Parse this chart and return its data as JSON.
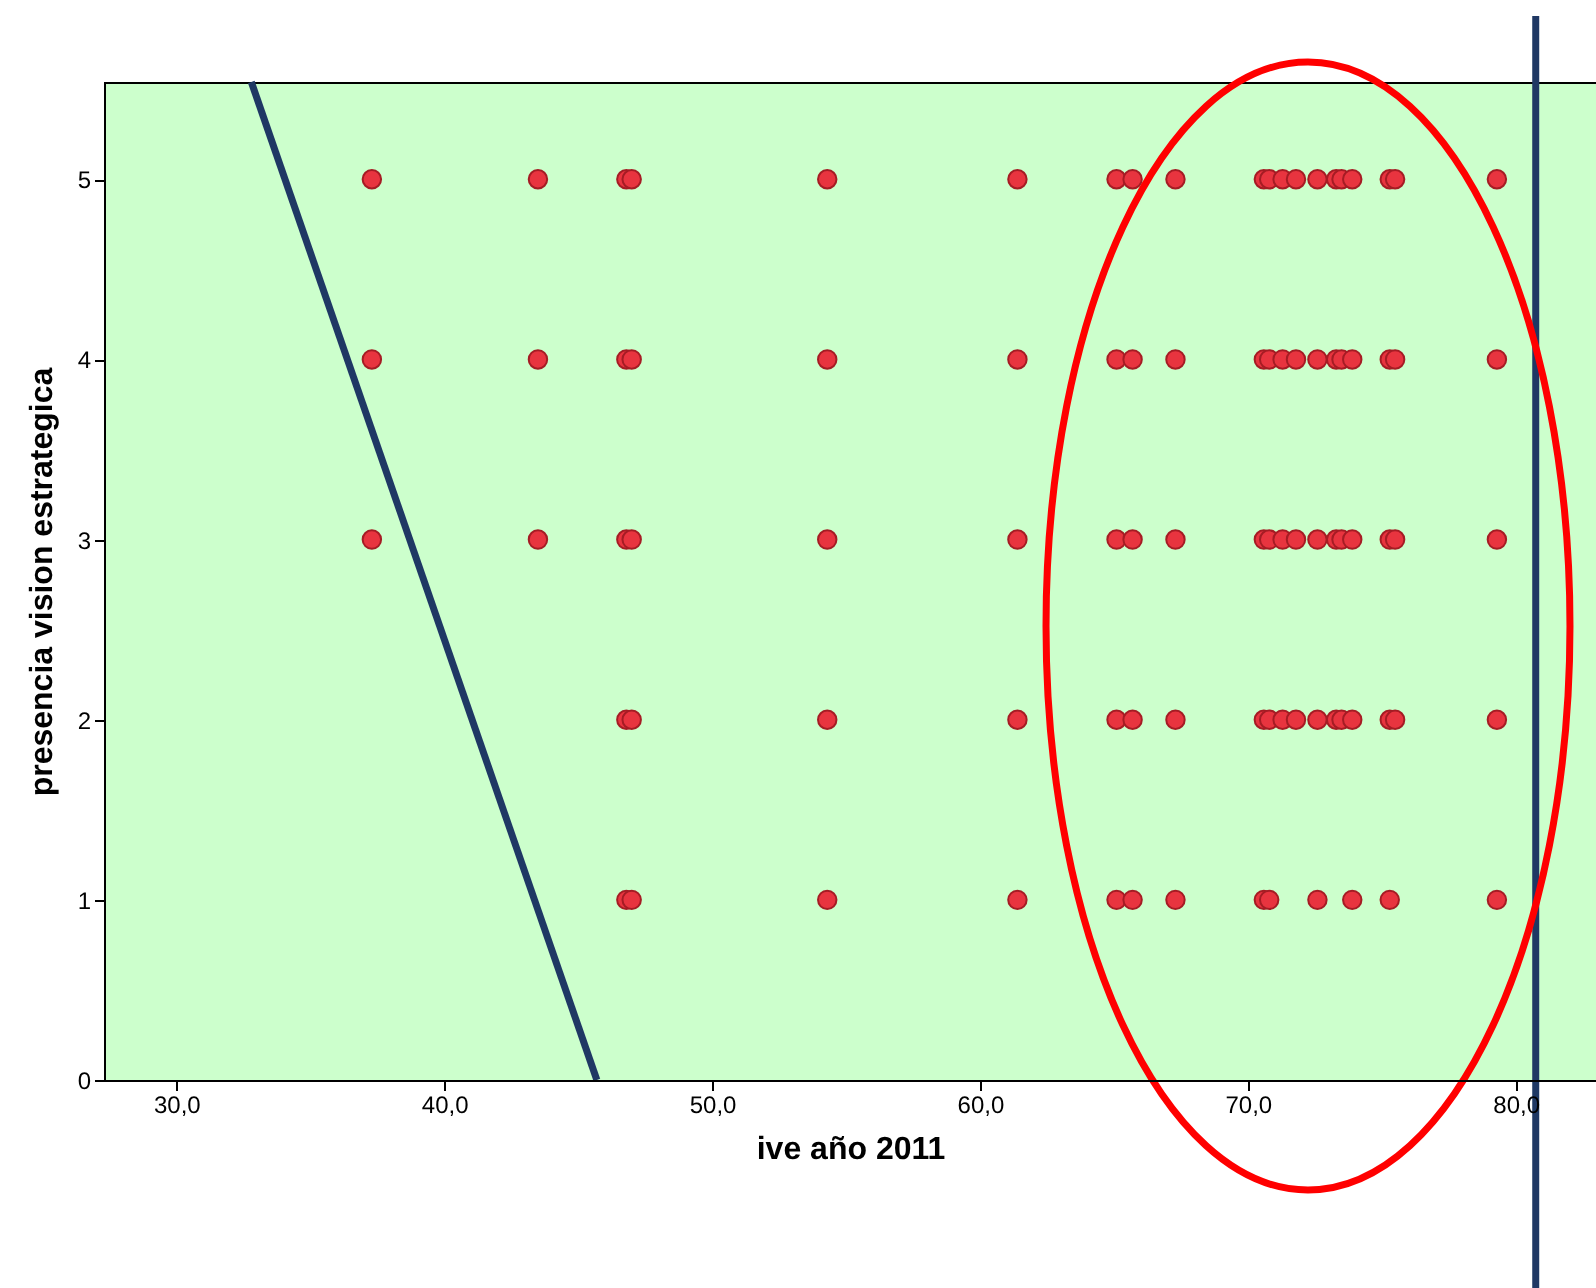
{
  "chart_data": {
    "type": "scatter",
    "xlabel": "ive año 2011",
    "ylabel": "presencia vision estrategica",
    "xlim": [
      27.3,
      83.0
    ],
    "ylim": [
      0,
      5.54
    ],
    "xticks": [
      {
        "value": 30,
        "label": "30,0"
      },
      {
        "value": 40,
        "label": "40,0"
      },
      {
        "value": 50,
        "label": "50,0"
      },
      {
        "value": 60,
        "label": "60,0"
      },
      {
        "value": 70,
        "label": "70,0"
      },
      {
        "value": 80,
        "label": "80,0"
      }
    ],
    "yticks": [
      0,
      1,
      2,
      3,
      4,
      5
    ],
    "grid": false,
    "marker": "circle",
    "series": [
      {
        "color": "#e8343f",
        "x": [
          37.3,
          43.5,
          46.8,
          47.0,
          54.3,
          61.4,
          65.1,
          65.7,
          67.3,
          70.6,
          70.8,
          71.3,
          71.8,
          72.6,
          73.3,
          73.5,
          73.9,
          75.3,
          75.5,
          79.3,
          37.3,
          43.5,
          46.8,
          47.0,
          54.3,
          61.4,
          65.1,
          65.7,
          67.3,
          70.6,
          70.8,
          71.3,
          71.8,
          72.6,
          73.3,
          73.5,
          73.9,
          75.3,
          75.5,
          79.3,
          37.3,
          43.5,
          46.8,
          47.0,
          54.3,
          61.4,
          65.1,
          65.7,
          67.3,
          70.6,
          70.8,
          71.3,
          71.8,
          72.6,
          73.3,
          73.5,
          73.9,
          75.3,
          75.5,
          79.3,
          46.8,
          47.0,
          54.3,
          61.4,
          65.1,
          65.7,
          67.3,
          70.6,
          70.8,
          71.3,
          71.8,
          72.6,
          73.3,
          73.5,
          73.9,
          75.3,
          75.5,
          79.3,
          46.8,
          47.0,
          54.3,
          61.4,
          65.1,
          65.7,
          67.3,
          70.6,
          70.8,
          72.6,
          73.9,
          75.3,
          79.3
        ],
        "values": [
          5,
          5,
          5,
          5,
          5,
          5,
          5,
          5,
          5,
          5,
          5,
          5,
          5,
          5,
          5,
          5,
          5,
          5,
          5,
          5,
          4,
          4,
          4,
          4,
          4,
          4,
          4,
          4,
          4,
          4,
          4,
          4,
          4,
          4,
          4,
          4,
          4,
          4,
          4,
          4,
          3,
          3,
          3,
          3,
          3,
          3,
          3,
          3,
          3,
          3,
          3,
          3,
          3,
          3,
          3,
          3,
          3,
          3,
          3,
          3,
          2,
          2,
          2,
          2,
          2,
          2,
          2,
          2,
          2,
          2,
          2,
          2,
          2,
          2,
          2,
          2,
          2,
          2,
          1,
          1,
          1,
          1,
          1,
          1,
          1,
          1,
          1,
          1,
          1,
          1,
          1
        ]
      },
      {
        "type": "line",
        "marker": "none",
        "color": "#1f3864",
        "x": [
          32.8,
          45.7
        ],
        "values": [
          5.54,
          0
        ]
      }
    ],
    "ref_lines": [
      {
        "axis": "x",
        "value": 80.75,
        "label": null,
        "color": "#1f3864"
      }
    ]
  }
}
